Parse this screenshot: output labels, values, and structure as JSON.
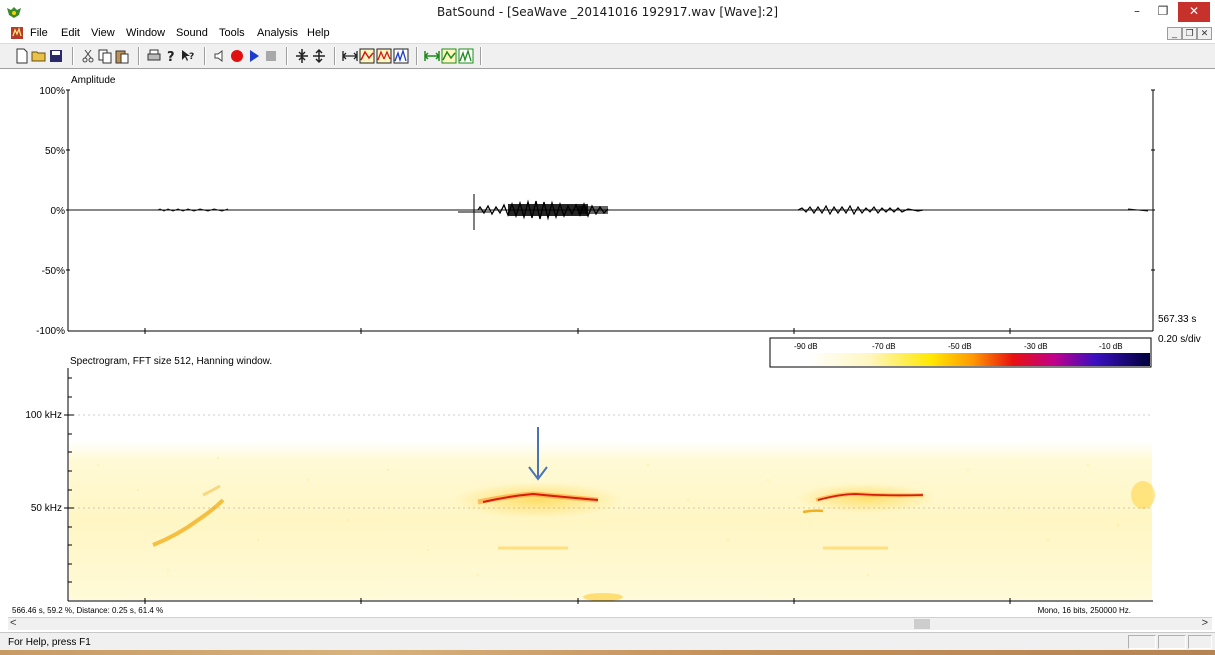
{
  "window": {
    "title": "BatSound - [SeaWave _20141016 192917.wav [Wave]:2]",
    "min_glyph": "–",
    "max_glyph": "❐",
    "close_glyph": "✕"
  },
  "menu": [
    "File",
    "Edit",
    "View",
    "Window",
    "Sound",
    "Tools",
    "Analysis",
    "Help"
  ],
  "mdi_controls": [
    "_",
    "❐",
    "✕"
  ],
  "toolbar": {
    "icons": [
      "new-icon",
      "open-icon",
      "save-icon",
      "cut-icon",
      "copy-icon",
      "paste-icon",
      "print-icon",
      "help-icon",
      "context-help-icon",
      "speaker-icon",
      "record-icon",
      "play-icon",
      "stop-icon",
      "zoom-vertical-in-icon",
      "zoom-vertical-out-icon",
      "time-expand-icon",
      "spectrogram-icon",
      "multi-spectrogram-icon",
      "power-spectrum-icon",
      "green-expand-icon",
      "green-spectrogram-icon",
      "green-spectrum-icon"
    ]
  },
  "waveform": {
    "label": "Amplitude",
    "y_ticks": [
      "100%",
      "50%",
      "0%",
      "-50%",
      "-100%"
    ],
    "time_readout": "567.33 s",
    "scale_readout": "0.20 s/div"
  },
  "spectrogram": {
    "label": "Spectrogram, FFT size 512, Hanning window.",
    "y_ticks": [
      "100 kHz",
      "50 kHz"
    ],
    "colorbar_labels": [
      "-90 dB",
      "-70 dB",
      "-50 dB",
      "-30 dB",
      "-10 dB"
    ]
  },
  "info": {
    "cursor": "566.46 s, 59.2 %, Distance: 0.25 s, 61.4 %",
    "format": "Mono, 16 bits, 250000 Hz."
  },
  "scroll": {
    "left_arrow": "<",
    "right_arrow": ">"
  },
  "status": {
    "help_text": "For Help, press F1"
  },
  "colors": {
    "close_button": "#c7312b",
    "play_blue": "#1a3ccc",
    "record_red": "#e01010",
    "arrow_blue": "#4a74b8"
  }
}
